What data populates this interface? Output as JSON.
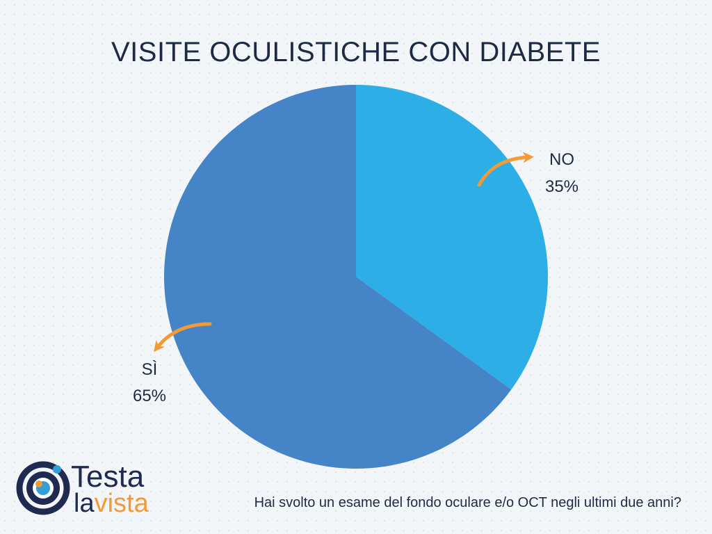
{
  "chart_data": {
    "type": "pie",
    "title": "VISITE OCULISTICHE CON DIABETE",
    "slices": [
      {
        "label": "NO",
        "value": 35,
        "value_label": "35%",
        "color": "#2eaee6"
      },
      {
        "label": "SÌ",
        "value": 65,
        "value_label": "65%",
        "color": "#4484c7"
      }
    ],
    "start": "top",
    "direction": "clockwise"
  },
  "caption": "Hai svolto un esame del fondo oculare e/o OCT negli ultimi due anni?",
  "logo": {
    "line1": "Testa",
    "line2_prefix": "la",
    "line2_suffix": "vista"
  },
  "colors": {
    "text": "#1e2a44",
    "accent_orange": "#f29a38",
    "logo_navy": "#1e2a50",
    "logo_blue": "#2f9fd8"
  }
}
